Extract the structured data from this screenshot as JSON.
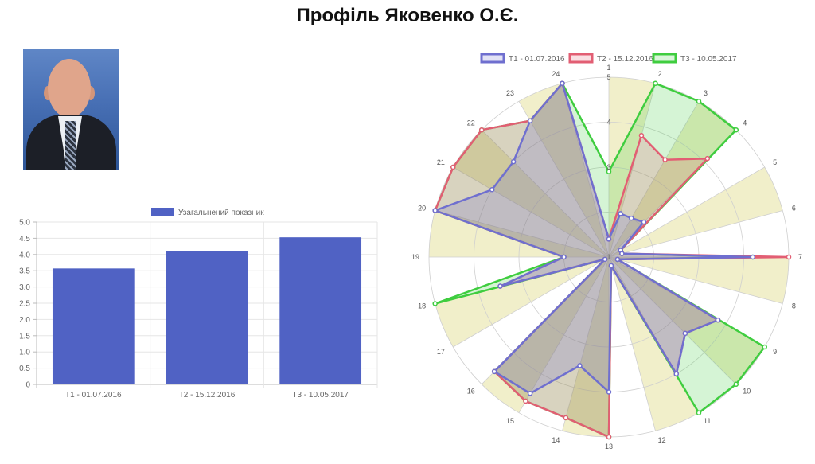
{
  "page": {
    "title": "Профіль Яковенко О.Є."
  },
  "colors": {
    "t1": "#6f6fcf",
    "t2": "#e25e73",
    "t3": "#3fcd3f",
    "bar": "#5062c4",
    "band": "#ece9b8"
  },
  "chart_data": [
    {
      "type": "bar",
      "title": "",
      "categories": [
        "T1 - 01.07.2016",
        "T2 - 15.12.2016",
        "T3 - 10.05.2017"
      ],
      "series": [
        {
          "name": "Узагальнений показник",
          "values": [
            3.57,
            4.1,
            4.53
          ]
        }
      ],
      "ylim": [
        0,
        5
      ],
      "yticks": [
        "0",
        "0.5",
        "1.0",
        "1.5",
        "2.0",
        "2.5",
        "3.0",
        "3.5",
        "4.0",
        "4.5",
        "5.0"
      ],
      "legend": "top-center",
      "grid": true
    },
    {
      "type": "radar",
      "title": "",
      "categories": [
        "1",
        "2",
        "3",
        "4",
        "5",
        "6",
        "7",
        "8",
        "9",
        "10",
        "11",
        "12",
        "13",
        "14",
        "15",
        "16",
        "17",
        "18",
        "19",
        "20",
        "21",
        "22",
        "23",
        "24"
      ],
      "rlim": [
        1,
        5
      ],
      "rticks": [
        "1",
        "3",
        "4",
        "5"
      ],
      "series": [
        {
          "name": "T1 - 01.07.2016",
          "values": [
            1.4,
            2.0,
            2.0,
            2.1,
            1.3,
            1.3,
            4.2,
            1.2,
            3.8,
            3.4,
            4.0,
            1.2,
            4.0,
            3.5,
            4.5,
            4.6,
            1.1,
            3.5,
            2.0,
            5.0,
            4.0,
            4.0,
            4.5,
            5.0
          ]
        },
        {
          "name": "T2 - 15.12.2016",
          "values": [
            1.4,
            3.8,
            3.5,
            4.1,
            1.3,
            1.3,
            5.0,
            1.2,
            3.8,
            3.4,
            4.0,
            1.2,
            5.0,
            4.7,
            4.7,
            4.6,
            1.1,
            3.5,
            2.0,
            5.0,
            5.0,
            5.0,
            4.5,
            5.0
          ]
        },
        {
          "name": "T3 - 10.05.2017",
          "values": [
            2.9,
            5.0,
            5.0,
            5.0,
            1.3,
            1.3,
            4.2,
            1.2,
            5.0,
            5.0,
            5.0,
            1.2,
            5.0,
            4.7,
            4.7,
            4.6,
            1.1,
            5.0,
            2.0,
            5.0,
            5.0,
            5.0,
            4.5,
            5.0
          ]
        }
      ],
      "legend": "top-center",
      "grid": true
    }
  ]
}
